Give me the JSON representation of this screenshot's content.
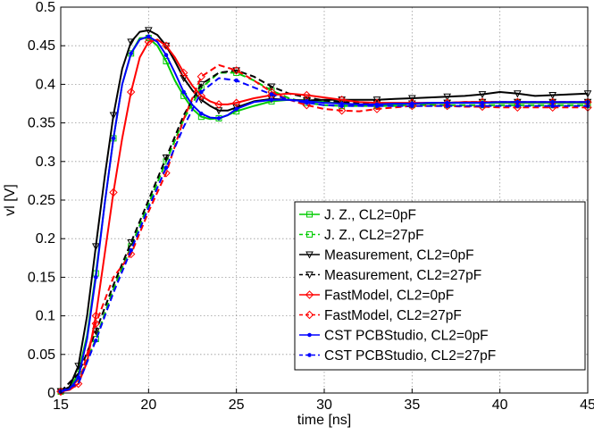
{
  "chart_data": {
    "type": "line",
    "xlabel": "time [ns]",
    "ylabel": "vl [V]",
    "xlim": [
      15,
      45
    ],
    "ylim": [
      0,
      0.5
    ],
    "xticks": [
      "15",
      "20",
      "25",
      "30",
      "35",
      "40",
      "45"
    ],
    "yticks": [
      "0",
      "0.05",
      "0.1",
      "0.15",
      "0.2",
      "0.25",
      "0.3",
      "0.35",
      "0.4",
      "0.45",
      "0.5"
    ],
    "grid": true,
    "legend_position": "lower-right",
    "series": [
      {
        "name": "J. Z., CL2=0pF",
        "color": "#00cc00",
        "dash": "solid",
        "marker": "square",
        "x": [
          15,
          15.5,
          16,
          16.5,
          17,
          17.5,
          18,
          18.5,
          19,
          19.5,
          20,
          20.5,
          21,
          21.5,
          22,
          22.5,
          23,
          23.5,
          24,
          24.5,
          25,
          26,
          27,
          28,
          29,
          30,
          31,
          32,
          33,
          34,
          35,
          36,
          37,
          38,
          39,
          40,
          41,
          42,
          43,
          44,
          45
        ],
        "y": [
          0.002,
          0.006,
          0.025,
          0.075,
          0.155,
          0.245,
          0.33,
          0.4,
          0.44,
          0.46,
          0.46,
          0.45,
          0.43,
          0.405,
          0.385,
          0.368,
          0.358,
          0.355,
          0.356,
          0.36,
          0.365,
          0.372,
          0.378,
          0.38,
          0.379,
          0.377,
          0.375,
          0.373,
          0.373,
          0.374,
          0.375,
          0.375,
          0.376,
          0.376,
          0.376,
          0.376,
          0.376,
          0.376,
          0.376,
          0.376,
          0.376
        ]
      },
      {
        "name": "J. Z., CL2=27pF",
        "color": "#00cc00",
        "dash": "dashed",
        "marker": "square",
        "x": [
          15,
          16,
          17,
          18,
          19,
          20,
          21,
          22,
          23,
          24,
          25,
          26,
          27,
          28,
          29,
          30,
          31,
          32,
          33,
          34,
          35,
          36,
          37,
          38,
          39,
          40,
          41,
          42,
          43,
          44,
          45
        ],
        "y": [
          0.002,
          0.015,
          0.07,
          0.135,
          0.19,
          0.245,
          0.3,
          0.355,
          0.395,
          0.415,
          0.415,
          0.405,
          0.392,
          0.382,
          0.376,
          0.373,
          0.372,
          0.372,
          0.372,
          0.372,
          0.373,
          0.373,
          0.373,
          0.373,
          0.373,
          0.373,
          0.373,
          0.373,
          0.373,
          0.373,
          0.373
        ]
      },
      {
        "name": "Measurement, CL2=0pF",
        "color": "#000000",
        "dash": "solid",
        "marker": "triangle-down",
        "x": [
          15,
          15.5,
          16,
          16.5,
          17,
          17.5,
          18,
          18.5,
          19,
          19.5,
          20,
          20.5,
          21,
          21.5,
          22,
          22.5,
          23,
          23.5,
          24,
          24.5,
          25,
          26,
          27,
          28,
          29,
          30,
          31,
          32,
          33,
          34,
          35,
          36,
          37,
          38,
          39,
          40,
          41,
          42,
          43,
          44,
          45
        ],
        "y": [
          0.002,
          0.008,
          0.035,
          0.1,
          0.19,
          0.28,
          0.36,
          0.42,
          0.455,
          0.468,
          0.47,
          0.464,
          0.45,
          0.43,
          0.408,
          0.392,
          0.38,
          0.372,
          0.366,
          0.366,
          0.37,
          0.378,
          0.381,
          0.38,
          0.379,
          0.38,
          0.38,
          0.38,
          0.38,
          0.381,
          0.382,
          0.383,
          0.384,
          0.385,
          0.387,
          0.39,
          0.388,
          0.385,
          0.386,
          0.387,
          0.388
        ]
      },
      {
        "name": "Measurement, CL2=27pF",
        "color": "#000000",
        "dash": "dashed",
        "marker": "triangle-down",
        "x": [
          15,
          16,
          17,
          18,
          19,
          20,
          21,
          22,
          23,
          24,
          25,
          26,
          27,
          28,
          29,
          30,
          31,
          32,
          33,
          34,
          35,
          36,
          37,
          38,
          39,
          40,
          41,
          42,
          43,
          44,
          45
        ],
        "y": [
          0.002,
          0.025,
          0.08,
          0.14,
          0.195,
          0.25,
          0.305,
          0.36,
          0.4,
          0.415,
          0.418,
          0.41,
          0.397,
          0.388,
          0.383,
          0.379,
          0.377,
          0.376,
          0.375,
          0.375,
          0.375,
          0.376,
          0.376,
          0.377,
          0.377,
          0.377,
          0.377,
          0.377,
          0.377,
          0.377,
          0.377
        ]
      },
      {
        "name": "FastModel, CL2=0pF",
        "color": "#ff0000",
        "dash": "solid",
        "marker": "diamond",
        "x": [
          15,
          15.5,
          16,
          16.5,
          17,
          17.5,
          18,
          18.5,
          19,
          19.5,
          20,
          20.5,
          21,
          21.5,
          22,
          22.5,
          23,
          23.5,
          24,
          24.5,
          25,
          26,
          27,
          28,
          29,
          30,
          31,
          32,
          33,
          34,
          35,
          36,
          37,
          38,
          39,
          40,
          41,
          42,
          43,
          44,
          45
        ],
        "y": [
          0.002,
          0.004,
          0.012,
          0.04,
          0.1,
          0.18,
          0.26,
          0.33,
          0.39,
          0.435,
          0.455,
          0.458,
          0.45,
          0.435,
          0.415,
          0.398,
          0.385,
          0.378,
          0.374,
          0.374,
          0.376,
          0.382,
          0.386,
          0.388,
          0.386,
          0.383,
          0.38,
          0.377,
          0.376,
          0.376,
          0.376,
          0.376,
          0.376,
          0.377,
          0.377,
          0.377,
          0.377,
          0.377,
          0.377,
          0.377,
          0.377
        ]
      },
      {
        "name": "FastModel, CL2=27pF",
        "color": "#ff0000",
        "dash": "dashed",
        "marker": "diamond",
        "x": [
          15,
          16,
          17,
          18,
          19,
          20,
          21,
          22,
          23,
          24,
          25,
          26,
          27,
          28,
          29,
          30,
          31,
          32,
          33,
          34,
          35,
          36,
          37,
          38,
          39,
          40,
          41,
          42,
          43,
          44,
          45
        ],
        "y": [
          0.002,
          0.01,
          0.09,
          0.15,
          0.18,
          0.235,
          0.285,
          0.355,
          0.41,
          0.425,
          0.418,
          0.405,
          0.39,
          0.38,
          0.373,
          0.368,
          0.366,
          0.365,
          0.368,
          0.37,
          0.372,
          0.372,
          0.372,
          0.371,
          0.371,
          0.37,
          0.37,
          0.37,
          0.37,
          0.37,
          0.37
        ]
      },
      {
        "name": "CST PCBStudio, CL2=0pF",
        "color": "#0000ff",
        "dash": "solid",
        "marker": "dot",
        "x": [
          15,
          15.5,
          16,
          16.5,
          17,
          17.5,
          18,
          18.5,
          19,
          19.5,
          20,
          20.5,
          21,
          21.5,
          22,
          22.5,
          23,
          23.5,
          24,
          24.5,
          25,
          26,
          27,
          28,
          29,
          30,
          31,
          32,
          33,
          34,
          35,
          36,
          37,
          38,
          39,
          40,
          41,
          42,
          43,
          44,
          45
        ],
        "y": [
          0.002,
          0.005,
          0.02,
          0.07,
          0.15,
          0.245,
          0.33,
          0.4,
          0.44,
          0.458,
          0.462,
          0.455,
          0.438,
          0.415,
          0.39,
          0.373,
          0.362,
          0.357,
          0.356,
          0.36,
          0.368,
          0.377,
          0.38,
          0.38,
          0.378,
          0.376,
          0.375,
          0.374,
          0.374,
          0.375,
          0.375,
          0.376,
          0.376,
          0.376,
          0.376,
          0.377,
          0.377,
          0.377,
          0.377,
          0.377,
          0.377
        ]
      },
      {
        "name": "CST PCBStudio, CL2=27pF",
        "color": "#0000ff",
        "dash": "dashed",
        "marker": "dot",
        "x": [
          15,
          16,
          17,
          18,
          19,
          20,
          21,
          22,
          23,
          24,
          25,
          26,
          27,
          28,
          29,
          30,
          31,
          32,
          33,
          34,
          35,
          36,
          37,
          38,
          39,
          40,
          41,
          42,
          43,
          44,
          45
        ],
        "y": [
          0.002,
          0.012,
          0.068,
          0.13,
          0.185,
          0.24,
          0.292,
          0.345,
          0.39,
          0.408,
          0.405,
          0.396,
          0.387,
          0.38,
          0.376,
          0.373,
          0.372,
          0.372,
          0.372,
          0.372,
          0.372,
          0.372,
          0.372,
          0.372,
          0.372,
          0.372,
          0.372,
          0.372,
          0.372,
          0.372,
          0.372
        ]
      }
    ]
  }
}
